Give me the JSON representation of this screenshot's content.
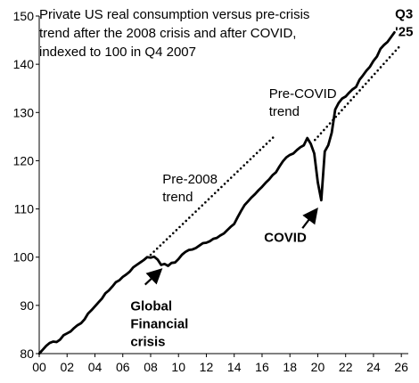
{
  "chart_data": {
    "type": "line",
    "title": [
      "Private US real consumption versus pre-crisis",
      "trend after the 2008 crisis and after COVID,",
      "indexed to 100 in Q4 2007"
    ],
    "xlabel": "",
    "ylabel": "",
    "xlim": [
      2000,
      2026.5
    ],
    "ylim": [
      80,
      150
    ],
    "x_ticks": [
      2000,
      2002,
      2004,
      2006,
      2008,
      2010,
      2012,
      2014,
      2016,
      2018,
      2020,
      2022,
      2024,
      2026
    ],
    "x_tick_labels": [
      "00",
      "02",
      "04",
      "06",
      "08",
      "10",
      "12",
      "14",
      "16",
      "18",
      "20",
      "22",
      "24",
      "26"
    ],
    "y_ticks": [
      80,
      90,
      100,
      110,
      120,
      130,
      140,
      150
    ],
    "y_tick_labels": [
      "80",
      "90",
      "100",
      "110",
      "120",
      "130",
      "140",
      "150"
    ],
    "grid": false,
    "series": [
      {
        "style": "solid",
        "color": "#000000",
        "x": [
          2000.0,
          2000.25,
          2000.5,
          2000.75,
          2001.0,
          2001.25,
          2001.5,
          2001.75,
          2002.0,
          2002.25,
          2002.5,
          2002.75,
          2003.0,
          2003.25,
          2003.5,
          2003.75,
          2004.0,
          2004.25,
          2004.5,
          2004.75,
          2005.0,
          2005.25,
          2005.5,
          2005.75,
          2006.0,
          2006.25,
          2006.5,
          2006.75,
          2007.0,
          2007.25,
          2007.5,
          2007.75,
          2008.0,
          2008.25,
          2008.5,
          2008.75,
          2009.0,
          2009.25,
          2009.5,
          2009.75,
          2010.0,
          2010.25,
          2010.5,
          2010.75,
          2011.0,
          2011.25,
          2011.5,
          2011.75,
          2012.0,
          2012.25,
          2012.5,
          2012.75,
          2013.0,
          2013.25,
          2013.5,
          2013.75,
          2014.0,
          2014.25,
          2014.5,
          2014.75,
          2015.0,
          2015.25,
          2015.5,
          2015.75,
          2016.0,
          2016.25,
          2016.5,
          2016.75,
          2017.0,
          2017.25,
          2017.5,
          2017.75,
          2018.0,
          2018.25,
          2018.5,
          2018.75,
          2019.0,
          2019.25,
          2019.5,
          2019.75,
          2020.0,
          2020.25,
          2020.5,
          2020.75,
          2021.0,
          2021.25,
          2021.5,
          2021.75,
          2022.0,
          2022.25,
          2022.5,
          2022.75,
          2023.0,
          2023.25,
          2023.5,
          2023.75,
          2024.0,
          2024.25,
          2024.5,
          2024.75,
          2025.0,
          2025.25,
          2025.5
        ],
        "y": [
          80.0,
          80.8,
          81.6,
          82.2,
          82.5,
          82.4,
          82.9,
          83.8,
          84.2,
          84.6,
          85.3,
          85.9,
          86.3,
          87.1,
          88.3,
          89.0,
          89.8,
          90.6,
          91.4,
          92.5,
          93.1,
          93.9,
          94.8,
          95.2,
          95.9,
          96.4,
          97.0,
          97.9,
          98.4,
          98.9,
          99.4,
          100.0,
          99.9,
          100.1,
          99.5,
          98.4,
          98.6,
          98.2,
          98.8,
          98.9,
          99.6,
          100.5,
          101.1,
          101.5,
          101.6,
          101.9,
          102.4,
          102.9,
          103.0,
          103.3,
          103.8,
          104.0,
          104.5,
          104.9,
          105.6,
          106.3,
          106.9,
          108.3,
          109.6,
          110.8,
          111.6,
          112.4,
          113.1,
          113.9,
          114.6,
          115.4,
          116.1,
          117.0,
          117.6,
          118.8,
          119.9,
          120.7,
          121.2,
          121.5,
          122.2,
          122.8,
          123.2,
          124.7,
          123.5,
          121.5,
          115.5,
          111.8,
          121.9,
          123.2,
          125.8,
          130.6,
          132.0,
          132.9,
          133.3,
          134.1,
          134.8,
          135.3,
          136.8,
          137.7,
          138.7,
          139.5,
          140.7,
          141.6,
          143.2,
          144.0,
          144.6,
          145.6,
          146.6
        ]
      },
      {
        "style": "dotted",
        "color": "#000000",
        "x": [
          2008.0,
          2016.9
        ],
        "y": [
          100.5,
          125.1
        ]
      },
      {
        "style": "dotted",
        "color": "#000000",
        "x": [
          2019.8,
          2025.9
        ],
        "y": [
          124.3,
          143.8
        ]
      }
    ],
    "annotations": [
      {
        "lines": [
          "Q3",
          "'25"
        ],
        "weight": "bold",
        "x": 2025.55,
        "y": 149.5
      },
      {
        "lines": [
          "Pre-COVID",
          "trend"
        ],
        "weight": "normal",
        "x": 2016.5,
        "y": 133.0
      },
      {
        "lines": [
          "Pre-2008",
          "trend"
        ],
        "weight": "normal",
        "x": 2008.85,
        "y": 115.3
      },
      {
        "lines": [
          "COVID"
        ],
        "weight": "bold",
        "x": 2016.15,
        "y": 103.2
      },
      {
        "lines": [
          "Global",
          "Financial",
          "crisis"
        ],
        "weight": "bold",
        "x": 2006.55,
        "y": 89.0
      }
    ],
    "arrows": [
      {
        "from": [
          2018.9,
          106.0
        ],
        "to": [
          2019.9,
          109.8
        ]
      },
      {
        "from": [
          2007.6,
          94.3
        ],
        "to": [
          2008.7,
          97.3
        ]
      }
    ]
  }
}
